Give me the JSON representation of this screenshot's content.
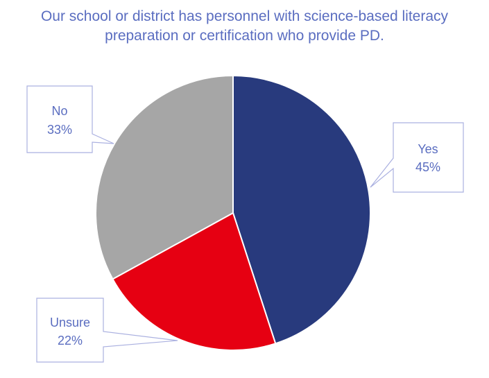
{
  "colors": {
    "title": "#5a6dc0",
    "label": "#5a6dc0",
    "callout_border": "#aab0e0",
    "slice_border": "#ffffff"
  },
  "chart_data": {
    "type": "pie",
    "title_lines": [
      "Our school or district has personnel with science-based literacy",
      "preparation or certification who provide PD."
    ],
    "slices": [
      {
        "label": "Yes",
        "value": 45,
        "value_label": "45%",
        "color": "#283a7d"
      },
      {
        "label": "Unsure",
        "value": 22,
        "value_label": "22%",
        "color": "#e60012"
      },
      {
        "label": "No",
        "value": 33,
        "value_label": "33%",
        "color": "#a6a6a6"
      }
    ],
    "legend": "none",
    "data_labels": "callouts"
  }
}
